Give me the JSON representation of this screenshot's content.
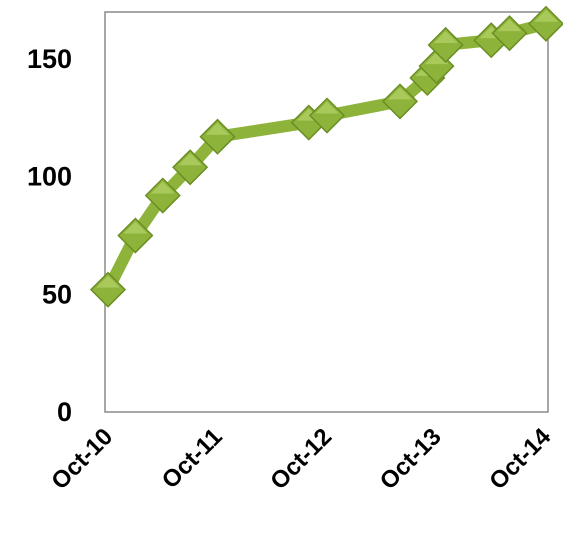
{
  "chart_data": {
    "type": "line",
    "title": "",
    "xlabel": "",
    "ylabel": "",
    "x_tick_labels": [
      "Oct-10",
      "Oct-11",
      "Oct-12",
      "Oct-13",
      "Oct-14"
    ],
    "y_tick_labels": [
      "0",
      "50",
      "100",
      "150"
    ],
    "ylim": [
      0,
      170
    ],
    "grid": false,
    "legend": "none",
    "marker": "diamond",
    "colors": {
      "line": "#8DB33B",
      "marker_fill": "#8DB33B",
      "marker_edge": "#6B8E23",
      "axis": "#8A8A8A"
    },
    "series": [
      {
        "points": [
          {
            "x": "2010-10",
            "y": 52
          },
          {
            "x": "2011-01",
            "y": 75
          },
          {
            "x": "2011-04",
            "y": 92
          },
          {
            "x": "2011-07",
            "y": 104
          },
          {
            "x": "2011-10",
            "y": 117
          },
          {
            "x": "2012-08",
            "y": 123
          },
          {
            "x": "2012-10",
            "y": 126
          },
          {
            "x": "2013-06",
            "y": 132
          },
          {
            "x": "2013-09",
            "y": 142
          },
          {
            "x": "2013-10",
            "y": 147
          },
          {
            "x": "2013-11",
            "y": 156
          },
          {
            "x": "2014-04",
            "y": 158
          },
          {
            "x": "2014-06",
            "y": 161
          },
          {
            "x": "2014-10",
            "y": 165
          }
        ]
      }
    ]
  }
}
